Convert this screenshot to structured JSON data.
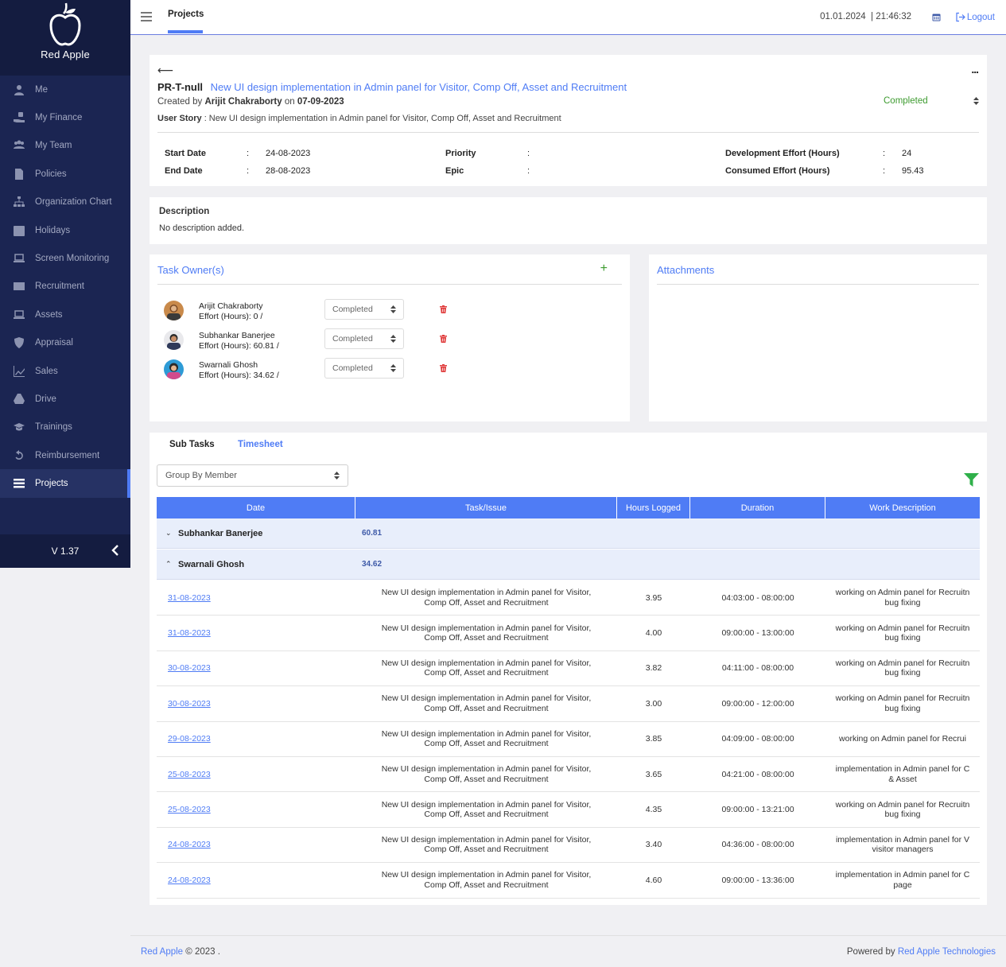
{
  "brand": {
    "name": "Red Apple"
  },
  "sidebar": {
    "items": [
      {
        "label": "Me",
        "icon": "user-icon"
      },
      {
        "label": "My Finance",
        "icon": "hand-money-icon"
      },
      {
        "label": "My Team",
        "icon": "team-icon"
      },
      {
        "label": "Policies",
        "icon": "file-icon"
      },
      {
        "label": "Organization Chart",
        "icon": "sitemap-icon"
      },
      {
        "label": "Holidays",
        "icon": "calendar-icon"
      },
      {
        "label": "Screen Monitoring",
        "icon": "laptop-icon"
      },
      {
        "label": "Recruitment",
        "icon": "envelope-icon"
      },
      {
        "label": "Assets",
        "icon": "laptop-icon"
      },
      {
        "label": "Appraisal",
        "icon": "shield-icon"
      },
      {
        "label": "Sales",
        "icon": "chart-icon"
      },
      {
        "label": "Drive",
        "icon": "drive-icon"
      },
      {
        "label": "Trainings",
        "icon": "graduation-icon"
      },
      {
        "label": "Reimbursement",
        "icon": "undo-icon"
      },
      {
        "label": "Projects",
        "icon": "tasks-icon",
        "active": true
      }
    ],
    "version": "V 1.37"
  },
  "topbar": {
    "tab": "Projects",
    "datetime": "01.01.2024  | 21:46:32",
    "logout": "Logout"
  },
  "task": {
    "back": "⟵",
    "more": "...",
    "code": "PR-T-null",
    "title": "New UI design implementation in Admin panel for Visitor, Comp Off, Asset and Recruitment",
    "created_prefix": "Created by",
    "created_by": "Arijit Chakraborty",
    "created_on_prefix": "on",
    "created_on": "07-09-2023",
    "user_story_label": "User Story",
    "user_story": " : New UI design implementation in Admin panel for Visitor, Comp Off, Asset and Recruitment",
    "status": "Completed",
    "start_date_label": "Start Date",
    "start_date": "24-08-2023",
    "end_date_label": "End Date",
    "end_date": "28-08-2023",
    "priority_label": "Priority",
    "priority": "",
    "epic_label": "Epic",
    "epic": "",
    "dev_effort_label": "Development Effort (Hours)",
    "dev_effort": "24",
    "consumed_effort_label": "Consumed Effort (Hours)",
    "consumed_effort": "95.43",
    "colon": ":"
  },
  "description": {
    "title": "Description",
    "text": "No description added."
  },
  "owners": {
    "title": "Task Owner(s)",
    "add": "+",
    "list": [
      {
        "name": "Arijit Chakraborty",
        "effort": "Effort (Hours): 0 /",
        "status": "Completed"
      },
      {
        "name": "Subhankar Banerjee",
        "effort": "Effort (Hours): 60.81 /",
        "status": "Completed"
      },
      {
        "name": "Swarnali Ghosh",
        "effort": "Effort (Hours): 34.62 /",
        "status": "Completed"
      }
    ]
  },
  "attachments": {
    "title": "Attachments"
  },
  "timesheet": {
    "tabs": {
      "subtasks": "Sub Tasks",
      "timesheet": "Timesheet"
    },
    "group_by": "Group By Member",
    "headers": [
      "Date",
      "Task/Issue",
      "Hours Logged",
      "Duration",
      "Work Description"
    ],
    "groups": [
      {
        "name": "Subhankar Banerjee",
        "hours": "60.81",
        "chevron": "⌄"
      },
      {
        "name": "Swarnali Ghosh",
        "hours": "34.62",
        "chevron": "⌃"
      }
    ],
    "rows": [
      {
        "date": "31-08-2023",
        "task1": "New UI design implementation in Admin panel for Visitor,",
        "task2": "Comp Off, Asset and Recruitment",
        "hours": "3.95",
        "duration": "04:03:00 - 08:00:00",
        "desc1": "working on Admin panel for Recruitn",
        "desc2": "bug fixing"
      },
      {
        "date": "31-08-2023",
        "task1": "New UI design implementation in Admin panel for Visitor,",
        "task2": "Comp Off, Asset and Recruitment",
        "hours": "4.00",
        "duration": "09:00:00 - 13:00:00",
        "desc1": "working on Admin panel for Recruitn",
        "desc2": "bug fixing"
      },
      {
        "date": "30-08-2023",
        "task1": "New UI design implementation in Admin panel for Visitor,",
        "task2": "Comp Off, Asset and Recruitment",
        "hours": "3.82",
        "duration": "04:11:00 - 08:00:00",
        "desc1": "working on Admin panel for Recruitn",
        "desc2": "bug fixing"
      },
      {
        "date": "30-08-2023",
        "task1": "New UI design implementation in Admin panel for Visitor,",
        "task2": "Comp Off, Asset and Recruitment",
        "hours": "3.00",
        "duration": "09:00:00 - 12:00:00",
        "desc1": "working on Admin panel for Recruitn",
        "desc2": "bug fixing"
      },
      {
        "date": "29-08-2023",
        "task1": "New UI design implementation in Admin panel for Visitor,",
        "task2": "Comp Off, Asset and Recruitment",
        "hours": "3.85",
        "duration": "04:09:00 - 08:00:00",
        "desc1": "working on Admin panel for Recrui",
        "desc2": ""
      },
      {
        "date": "25-08-2023",
        "task1": "New UI design implementation in Admin panel for Visitor,",
        "task2": "Comp Off, Asset and Recruitment",
        "hours": "3.65",
        "duration": "04:21:00 - 08:00:00",
        "desc1": "implementation in Admin panel for C",
        "desc2": "& Asset"
      },
      {
        "date": "25-08-2023",
        "task1": "New UI design implementation in Admin panel for Visitor,",
        "task2": "Comp Off, Asset and Recruitment",
        "hours": "4.35",
        "duration": "09:00:00 - 13:21:00",
        "desc1": "working on Admin panel for Recruitn",
        "desc2": "bug fixing"
      },
      {
        "date": "24-08-2023",
        "task1": "New UI design implementation in Admin panel for Visitor,",
        "task2": "Comp Off, Asset and Recruitment",
        "hours": "3.40",
        "duration": "04:36:00 - 08:00:00",
        "desc1": "implementation in Admin panel for V",
        "desc2": "visitor managers"
      },
      {
        "date": "24-08-2023",
        "task1": "New UI design implementation in Admin panel for Visitor,",
        "task2": "Comp Off, Asset and Recruitment",
        "hours": "4.60",
        "duration": "09:00:00 - 13:36:00",
        "desc1": "implementation in Admin panel for C",
        "desc2": "page"
      }
    ]
  },
  "footer": {
    "brand_link": "Red Apple",
    "copyright": " © 2023 .",
    "powered_prefix": "Powered by ",
    "powered_link": "Red Apple Technologies"
  },
  "colors": {
    "accent": "#4f7cf5",
    "sidebar_bg": "#1b2552",
    "success": "#3d9b2f",
    "danger": "#e03b3b"
  }
}
